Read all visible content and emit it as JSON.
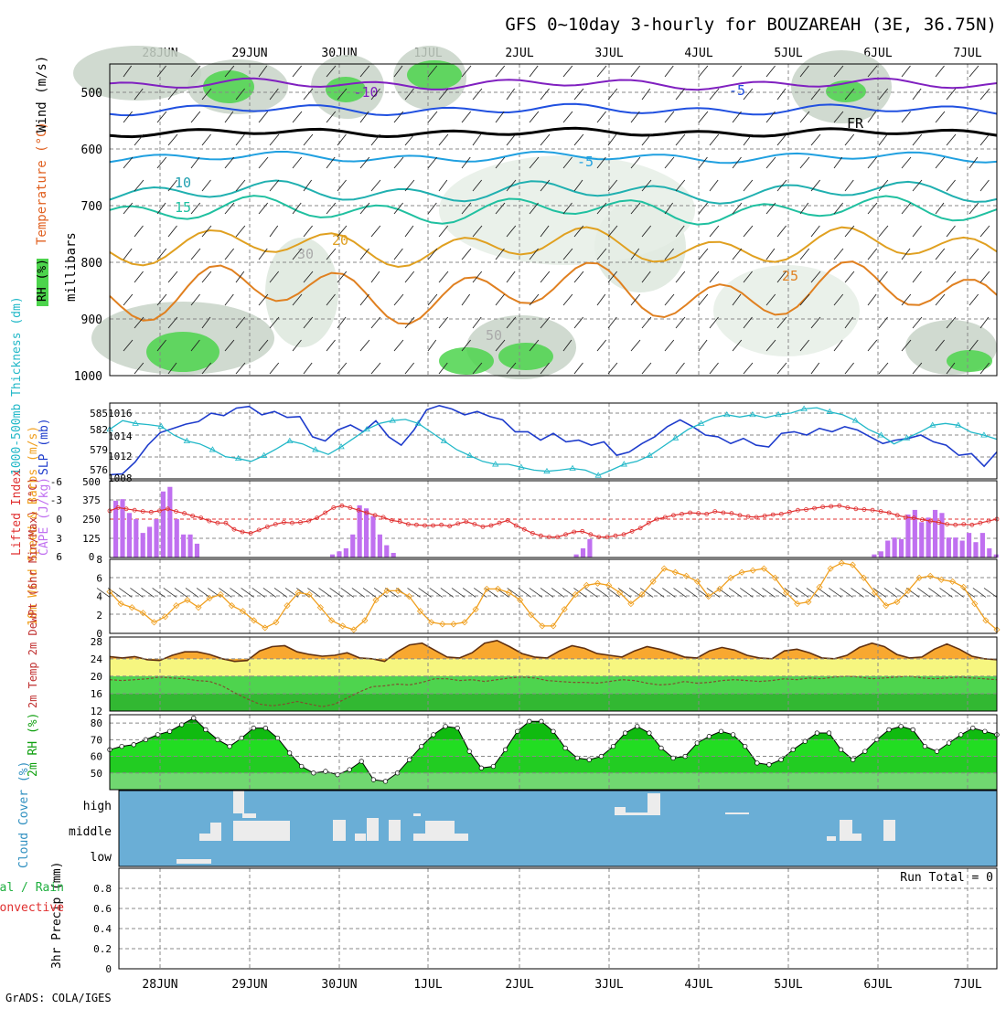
{
  "title": "GFS 0~10day 3-hourly for BOUZAREAH (3E, 36.75N)",
  "footer": "GrADS: COLA/IGES",
  "colors": {
    "rh_green": "#4cd44c",
    "rh_gray": "#c8d4c8",
    "slp": "#1e3ccc",
    "thickness": "#22b8c8",
    "lifted": "#e03030",
    "cape": "#c070f0",
    "wind_speed": "#f0a020",
    "temp_fill": "#f8a830",
    "cloud_bg": "#6aaed6",
    "cloud_fill": "#ececec"
  },
  "date_labels": [
    "28JUN",
    "29JUN",
    "30JUN",
    "1JUL",
    "2JUL",
    "3JUL",
    "4JUL",
    "5JUL",
    "6JUL",
    "7JUL"
  ],
  "chart_data": [
    {
      "type": "heatmap",
      "id": "upper",
      "ylabel_parts": [
        "RH (%)",
        "Temperature (°C)",
        "Wind (m/s)",
        "millibars"
      ],
      "yticks": [
        500,
        600,
        700,
        800,
        900,
        1000
      ],
      "ylim": [
        450,
        1000
      ],
      "temp_contour_labels": [
        "-10",
        "-5",
        "FR",
        "-5",
        "10",
        "15",
        "20",
        "25",
        "30",
        "50"
      ]
    },
    {
      "type": "line",
      "id": "slp_thick",
      "ylabel": "1000-500mb Thickness (dm)",
      "ylabel2": "SLP (mb)",
      "yticks_left": [
        "576",
        "579",
        "582",
        "585"
      ],
      "yticks_right": [
        "1008",
        "1012",
        "1014",
        "1016"
      ],
      "series": [
        {
          "name": "SLP (mb)",
          "values": [
            1008.5,
            1008.6,
            1010,
            1012,
            1013.5,
            1014,
            1014.5,
            1014.8,
            1015.8,
            1015.5,
            1016.4,
            1016.6,
            1015.6,
            1016,
            1015.3,
            1015.4,
            1013,
            1012.5,
            1013.8,
            1014.4,
            1013.6,
            1014.9,
            1013,
            1012,
            1013.8,
            1016.2,
            1016.7,
            1016.3,
            1015.6,
            1016,
            1015.4,
            1015,
            1013.6,
            1013.6,
            1012.6,
            1013.4,
            1012.4,
            1012.6,
            1012,
            1012.4,
            1010.8,
            1011.2,
            1012.2,
            1013,
            1014.2,
            1015,
            1014.2,
            1013.2,
            1013,
            1012.2,
            1012.8,
            1012,
            1011.8,
            1013.4,
            1013.6,
            1013.2,
            1014,
            1013.6,
            1014.2,
            1013.8,
            1013,
            1012.2,
            1012.6,
            1012.8,
            1013.2,
            1012.4,
            1012,
            1010.8,
            1011,
            1009.5,
            1011.2
          ]
        },
        {
          "name": "Thickness (dm)",
          "values": [
            582.5,
            584,
            583.5,
            583.3,
            583,
            581.5,
            580.5,
            580,
            579,
            577.8,
            577.5,
            577,
            578,
            579.2,
            580.5,
            580,
            579,
            578.2,
            579.5,
            581,
            582.5,
            583.5,
            584,
            584.2,
            583.5,
            582,
            580.5,
            579,
            578,
            577,
            576.5,
            576.5,
            576,
            575.5,
            575.3,
            575.5,
            575.8,
            575.5,
            574.6,
            575.5,
            576.5,
            577,
            578,
            579.5,
            581,
            582.5,
            583.5,
            584.5,
            585,
            584.6,
            585,
            584.5,
            585,
            585.3,
            586,
            586.2,
            585.5,
            585,
            584,
            582.5,
            581.5,
            580,
            581,
            582,
            583.2,
            583.5,
            583.2,
            582,
            581.5,
            580.8
          ]
        }
      ]
    },
    {
      "type": "bar",
      "id": "cape_li",
      "ylabel": "Lifted Index",
      "ylabel2": "CAPE (J/kg)",
      "yticks_left": [
        "-6",
        "-3",
        "0",
        "3",
        "6"
      ],
      "yticks_right": [
        "500",
        "375",
        "250",
        "125",
        "0"
      ],
      "series": [
        {
          "name": "CAPE (J/kg)",
          "values": [
            370,
            380,
            290,
            250,
            160,
            200,
            250,
            430,
            460,
            250,
            150,
            150,
            90,
            0,
            0,
            0,
            0,
            0,
            0,
            0,
            0,
            0,
            0,
            0,
            0,
            0,
            0,
            0,
            0,
            0,
            0,
            0,
            20,
            40,
            60,
            150,
            340,
            320,
            270,
            150,
            80,
            30,
            0,
            0,
            0,
            0,
            0,
            0,
            0,
            0,
            0,
            0,
            0,
            0,
            0,
            0,
            0,
            0,
            0,
            0,
            0,
            0,
            0,
            0,
            0,
            0,
            0,
            0,
            20,
            60,
            120,
            0,
            0,
            0,
            0,
            0,
            0,
            0,
            0,
            0,
            0,
            0,
            0,
            0,
            0,
            0,
            0,
            0,
            0,
            0,
            0,
            0,
            0,
            0,
            0,
            0,
            0,
            0,
            0,
            0,
            0,
            0,
            0,
            0,
            0,
            0,
            0,
            0,
            0,
            0,
            0,
            0,
            20,
            40,
            110,
            130,
            120,
            280,
            310,
            230,
            260,
            310,
            290,
            130,
            130,
            110,
            160,
            100,
            160,
            60,
            20
          ]
        },
        {
          "name": "Lifted Index",
          "values": [
            -1.3,
            -1.8,
            -1.6,
            -1.4,
            -1.2,
            -1.1,
            -1.3,
            -1.6,
            -1.2,
            -0.9,
            -0.5,
            -0.2,
            0.3,
            0.6,
            0.6,
            1.6,
            2.0,
            2.2,
            1.7,
            1.2,
            0.8,
            0.5,
            0.6,
            0.5,
            0.3,
            -0.2,
            -1.0,
            -1.8,
            -2.1,
            -1.8,
            -1.4,
            -1.0,
            -0.6,
            -0.3,
            0.2,
            0.4,
            0.8,
            0.9,
            1.0,
            1.0,
            0.9,
            1.1,
            0.7,
            0.4,
            0.8,
            1.2,
            1.0,
            0.6,
            0.2,
            1.0,
            1.6,
            2.2,
            2.6,
            2.8,
            2.8,
            2.4,
            2.0,
            1.9,
            2.4,
            2.8,
            2.8,
            2.6,
            2.4,
            1.9,
            1.4,
            0.6,
            0.0,
            -0.3,
            -0.6,
            -0.8,
            -1.0,
            -0.9,
            -0.8,
            -1.2,
            -1.0,
            -0.9,
            -0.6,
            -0.4,
            -0.3,
            -0.5,
            -0.7,
            -0.8,
            -1.1,
            -1.4,
            -1.5,
            -1.7,
            -1.9,
            -2.0,
            -2.1,
            -1.8,
            -1.6,
            -1.5,
            -1.4,
            -1.2,
            -1.0,
            -0.6,
            -0.3,
            -0.2,
            0.1,
            0.3,
            0.5,
            0.8,
            0.9,
            0.8,
            0.9,
            0.6,
            0.3,
            0.0
          ]
        }
      ]
    },
    {
      "type": "line",
      "id": "wind10m",
      "ylabel": "10m Wind Speed & Barbs (m/s)",
      "yticks": [
        "0",
        "2",
        "4",
        "6",
        "8"
      ],
      "ylim": [
        0,
        8
      ],
      "values": [
        4.5,
        3.2,
        2.8,
        2.2,
        1.2,
        1.8,
        3.0,
        3.6,
        2.8,
        3.8,
        4.2,
        3.0,
        2.4,
        1.4,
        0.6,
        1.2,
        3.0,
        4.4,
        4.2,
        2.8,
        1.4,
        0.8,
        0.4,
        1.4,
        3.6,
        4.6,
        4.6,
        4.0,
        2.4,
        1.2,
        1.0,
        1.0,
        1.2,
        2.6,
        4.8,
        4.8,
        4.4,
        3.6,
        2.0,
        0.8,
        0.8,
        2.6,
        4.2,
        5.2,
        5.4,
        5.2,
        4.4,
        3.2,
        4.2,
        5.6,
        7.0,
        6.6,
        6.2,
        5.6,
        4.0,
        4.8,
        6.0,
        6.6,
        6.8,
        7.0,
        6.0,
        4.4,
        3.2,
        3.4,
        5.0,
        7.0,
        7.6,
        7.4,
        6.0,
        4.4,
        3.0,
        3.4,
        4.6,
        6.0,
        6.2,
        5.8,
        5.6,
        5.0,
        3.2,
        1.4,
        0.4
      ]
    },
    {
      "type": "area",
      "id": "temp2m",
      "ylabel": "2m Temp 2m DewPt (6hr Min/Max) (°C)",
      "yticks": [
        "12",
        "16",
        "20",
        "24",
        "28"
      ],
      "ylim": [
        12,
        29
      ],
      "series": [
        {
          "name": "2m Temp",
          "values": [
            24.5,
            24.2,
            24.5,
            23.8,
            23.6,
            24.8,
            25.6,
            25.6,
            25.0,
            24.0,
            23.4,
            23.6,
            25.8,
            26.8,
            27.0,
            25.6,
            25.0,
            24.6,
            24.8,
            25.4,
            24.2,
            24.0,
            23.4,
            25.6,
            27.2,
            27.6,
            26.0,
            24.4,
            24.2,
            25.4,
            27.6,
            28.2,
            26.8,
            25.2,
            24.4,
            24.2,
            25.8,
            27.0,
            26.4,
            25.2,
            24.8,
            24.4,
            25.8,
            26.8,
            26.2,
            25.4,
            24.4,
            24.2,
            25.8,
            26.6,
            26.0,
            24.8,
            24.2,
            24.0,
            25.8,
            26.2,
            25.4,
            24.2,
            24.0,
            24.8,
            26.6,
            27.6,
            26.8,
            25.0,
            24.2,
            24.4,
            26.2,
            27.4,
            26.2,
            24.6,
            24.0,
            23.8
          ]
        },
        {
          "name": "2m DewPt",
          "values": [
            19.2,
            19.0,
            19.2,
            19.4,
            19.8,
            19.6,
            19.4,
            19.0,
            18.8,
            17.8,
            16.2,
            14.8,
            13.6,
            13.2,
            13.6,
            14.2,
            13.6,
            13.0,
            13.6,
            15.0,
            16.4,
            17.6,
            17.8,
            18.2,
            18.0,
            18.6,
            19.4,
            19.4,
            19.0,
            19.2,
            18.8,
            19.2,
            19.6,
            19.8,
            19.6,
            19.0,
            18.8,
            18.6,
            18.6,
            18.4,
            18.8,
            19.2,
            19.0,
            18.4,
            18.0,
            18.2,
            18.8,
            18.4,
            18.6,
            19.0,
            19.2,
            19.0,
            18.8,
            19.0,
            19.4,
            19.2,
            19.6,
            19.4,
            19.8,
            20.0,
            19.8,
            19.4,
            19.6,
            19.8,
            20.0,
            19.6,
            19.4,
            19.6,
            19.8,
            19.6,
            19.4,
            19.2
          ]
        }
      ]
    },
    {
      "type": "area",
      "id": "rh2m",
      "ylabel": "2m RH (%)",
      "yticks": [
        "50",
        "60",
        "70",
        "80"
      ],
      "ylim": [
        40,
        85
      ],
      "values": [
        64,
        66,
        67,
        70,
        73,
        75,
        79,
        83,
        76,
        70,
        66,
        71,
        77,
        77,
        71,
        62,
        54,
        50,
        51,
        49,
        52,
        57,
        46,
        45,
        50,
        58,
        66,
        73,
        78,
        77,
        63,
        53,
        54,
        64,
        75,
        81,
        81,
        75,
        65,
        59,
        58,
        60,
        66,
        74,
        78,
        74,
        65,
        59,
        60,
        68,
        72,
        75,
        73,
        66,
        56,
        55,
        58,
        64,
        69,
        74,
        74,
        64,
        58,
        63,
        70,
        76,
        78,
        76,
        66,
        63,
        68,
        73,
        77,
        75,
        73
      ]
    },
    {
      "type": "bar",
      "id": "cloud",
      "ylabel": "Cloud Cover (%)",
      "yticks": [
        "high",
        "middle",
        "low"
      ]
    },
    {
      "type": "bar",
      "id": "precip",
      "ylabel": "3hr Precip (mm)",
      "legend_a": "Total / Rain",
      "legend_b": "Convective",
      "run_total": "Run Total = 0",
      "yticks": [
        "0",
        "0.2",
        "0.4",
        "0.6",
        "0.8"
      ],
      "ylim": [
        0,
        1
      ],
      "values": []
    }
  ]
}
